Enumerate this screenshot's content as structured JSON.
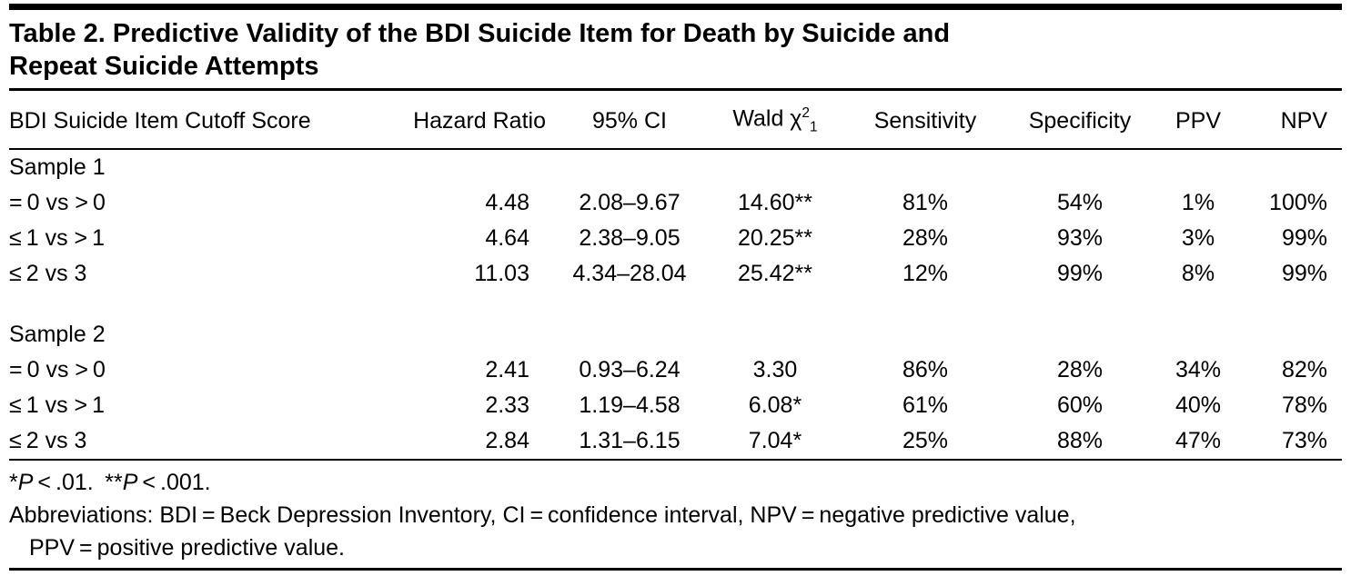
{
  "colors": {
    "rule": "#000000",
    "text": "#000000",
    "background": "#ffffff"
  },
  "table": {
    "title_line1": "Table 2. Predictive Validity of the BDI Suicide Item for Death by Suicide and",
    "title_line2": "Repeat Suicide Attempts",
    "headers": {
      "cutoff": "BDI Suicide Item Cutoff Score",
      "hazard_ratio": "Hazard Ratio",
      "ci": "95% CI",
      "wald": {
        "text": "Wald χ",
        "sup": "2",
        "sub": "1"
      },
      "sensitivity": "Sensitivity",
      "specificity": "Specificity",
      "ppv": "PPV",
      "npv": "NPV"
    },
    "sections": [
      {
        "label": "Sample 1",
        "rows": [
          {
            "cells": [
              "= 0 vs > 0",
              "4.48",
              "2.08–9.67",
              "14.60**",
              "81%",
              "54%",
              "1%",
              "100%"
            ]
          },
          {
            "cells": [
              "≤ 1 vs > 1",
              "4.64",
              "2.38–9.05",
              "20.25**",
              "28%",
              "93%",
              "3%",
              "99%"
            ]
          },
          {
            "cells": [
              "≤ 2 vs 3",
              "11.03",
              "4.34–28.04",
              "25.42**",
              "12%",
              "99%",
              "8%",
              "99%"
            ]
          }
        ]
      },
      {
        "label": "Sample 2",
        "rows": [
          {
            "cells": [
              "= 0 vs > 0",
              "2.41",
              "0.93–6.24",
              "3.30",
              "86%",
              "28%",
              "34%",
              "82%"
            ]
          },
          {
            "cells": [
              "≤ 1 vs > 1",
              "2.33",
              "1.19–4.58",
              "6.08*",
              "61%",
              "60%",
              "40%",
              "78%"
            ]
          },
          {
            "cells": [
              "≤ 2 vs 3",
              "2.84",
              "1.31–6.15",
              "7.04*",
              "25%",
              "88%",
              "47%",
              "73%"
            ]
          }
        ]
      }
    ]
  },
  "footnotes": {
    "sig": {
      "star1": "*",
      "p1": "P",
      "cond1": " < .01. ",
      "star2": "**",
      "p2": "P",
      "cond2": " < .001."
    },
    "abbreviations_line1": "Abbreviations: BDI = Beck Depression Inventory, CI = confidence interval, NPV = negative predictive value,",
    "abbreviations_line2": "PPV = positive predictive value."
  }
}
